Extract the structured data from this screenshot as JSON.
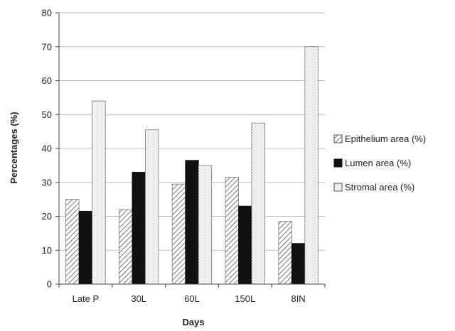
{
  "chart_data": {
    "type": "bar",
    "categories": [
      "Late P",
      "30L",
      "60L",
      "150L",
      "8IN"
    ],
    "series": [
      {
        "name": "Epithelium area (%)",
        "values": [
          25,
          22,
          29.5,
          31.5,
          18.5
        ],
        "pattern": "hatch",
        "color": "#555555"
      },
      {
        "name": "Lumen area (%)",
        "values": [
          21.5,
          33,
          36.5,
          23,
          12
        ],
        "pattern": "solid",
        "color": "#111111"
      },
      {
        "name": "Stromal area (%)",
        "values": [
          54,
          45.5,
          35,
          47.5,
          70
        ],
        "pattern": "dots",
        "color": "#9a9a9a"
      }
    ],
    "xlabel": "Days",
    "ylabel": "Percentages (%)",
    "ylim": [
      0,
      80
    ],
    "yticks": [
      0,
      10,
      20,
      30,
      40,
      50,
      60,
      70,
      80
    ],
    "grid": true,
    "legend": "right",
    "colors": {
      "grid": "#bbbbbb",
      "axis": "#444444"
    }
  }
}
